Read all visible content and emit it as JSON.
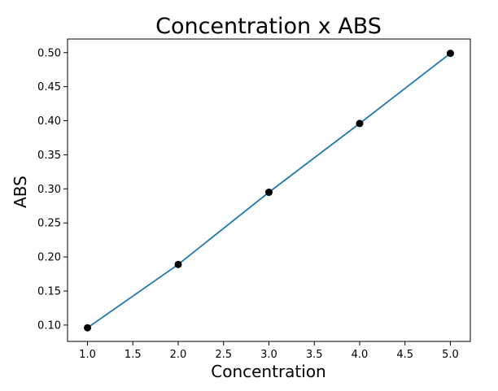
{
  "chart_data": {
    "type": "line",
    "title": "Concentration x ABS",
    "xlabel": "Concentration",
    "ylabel": "ABS",
    "x": [
      1.0,
      2.0,
      3.0,
      4.0,
      5.0
    ],
    "series": [
      {
        "values": [
          0.096,
          0.189,
          0.295,
          0.396,
          0.499
        ],
        "line_color": "#1f77b4",
        "marker_color": "#000000"
      }
    ],
    "xlim": [
      0.78,
      5.22
    ],
    "ylim": [
      0.076,
      0.52
    ],
    "x_ticks": [
      "1.0",
      "1.5",
      "2.0",
      "2.5",
      "3.0",
      "3.5",
      "4.0",
      "4.5",
      "5.0"
    ],
    "y_ticks": [
      "0.10",
      "0.15",
      "0.20",
      "0.25",
      "0.30",
      "0.35",
      "0.40",
      "0.45",
      "0.50"
    ],
    "grid": false,
    "legend": "none"
  }
}
